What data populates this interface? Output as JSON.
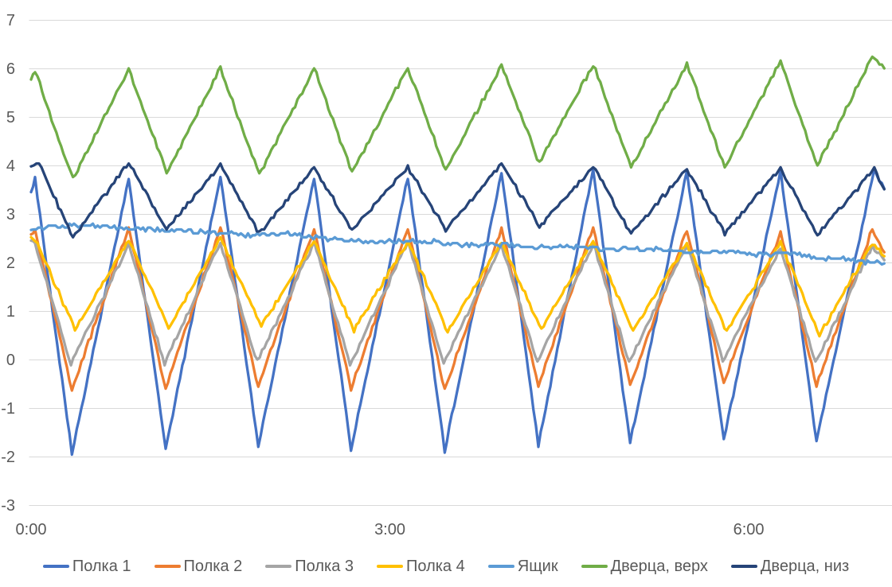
{
  "chart_data": {
    "type": "line",
    "title": "",
    "x_axis": {
      "unit": "time h:mm",
      "visible_range_min": [
        0,
        428
      ],
      "ticks": [
        {
          "t_min": 0,
          "label": "0:00"
        },
        {
          "t_min": 180,
          "label": "3:00"
        },
        {
          "t_min": 360,
          "label": "6:00"
        }
      ]
    },
    "y_axis": {
      "min": -3,
      "max": 7,
      "step": 1,
      "tick_labels": [
        "7",
        "6",
        "5",
        "4",
        "3",
        "2",
        "1",
        "0",
        "-1",
        "-2",
        "-3"
      ]
    },
    "grid": true,
    "legend_position": "bottom",
    "style": {
      "text_color": "#595959",
      "grid_color": "#D9D9D9",
      "background": "#FFFFFF"
    },
    "series": [
      {
        "name": "Полка 1",
        "color": "#4472C4",
        "points": [
          [
            0,
            3.45
          ],
          [
            2,
            3.72
          ],
          [
            20.5,
            -1.93
          ],
          [
            49,
            3.7
          ],
          [
            67.5,
            -1.87
          ],
          [
            95,
            3.78
          ],
          [
            114,
            -1.77
          ],
          [
            142,
            3.75
          ],
          [
            160.5,
            -1.87
          ],
          [
            189,
            3.77
          ],
          [
            207.5,
            -1.88
          ],
          [
            236,
            3.85
          ],
          [
            254.5,
            -1.75
          ],
          [
            282,
            3.92
          ],
          [
            300.5,
            -1.72
          ],
          [
            329,
            3.88
          ],
          [
            347.5,
            -1.66
          ],
          [
            376,
            3.9
          ],
          [
            394,
            -1.69
          ],
          [
            423,
            3.93
          ],
          [
            428,
            3.52
          ]
        ]
      },
      {
        "name": "Полка 2",
        "color": "#ED7D31",
        "points": [
          [
            0,
            2.58
          ],
          [
            2,
            2.65
          ],
          [
            20.5,
            -0.62
          ],
          [
            49,
            2.7
          ],
          [
            67.5,
            -0.6
          ],
          [
            95,
            2.72
          ],
          [
            114,
            -0.55
          ],
          [
            142,
            2.7
          ],
          [
            160.5,
            -0.6
          ],
          [
            189,
            2.71
          ],
          [
            207.5,
            -0.62
          ],
          [
            236,
            2.7
          ],
          [
            254.5,
            -0.55
          ],
          [
            282,
            2.72
          ],
          [
            300.5,
            -0.52
          ],
          [
            329,
            2.66
          ],
          [
            347.5,
            -0.46
          ],
          [
            376,
            2.63
          ],
          [
            394,
            -0.54
          ],
          [
            422,
            2.69
          ],
          [
            428,
            2.21
          ]
        ]
      },
      {
        "name": "Полка 3",
        "color": "#A5A5A5",
        "points": [
          [
            0,
            2.45
          ],
          [
            2,
            2.38
          ],
          [
            20,
            -0.1
          ],
          [
            49,
            2.36
          ],
          [
            67,
            -0.08
          ],
          [
            95,
            2.42
          ],
          [
            113.5,
            -0.05
          ],
          [
            142,
            2.4
          ],
          [
            160,
            -0.1
          ],
          [
            189,
            2.41
          ],
          [
            207,
            -0.08
          ],
          [
            236,
            2.38
          ],
          [
            254,
            -0.05
          ],
          [
            282,
            2.4
          ],
          [
            300,
            -0.04
          ],
          [
            329,
            2.36
          ],
          [
            347,
            -0.02
          ],
          [
            376,
            2.33
          ],
          [
            393.5,
            -0.07
          ],
          [
            422,
            2.35
          ],
          [
            428,
            2.05
          ]
        ]
      },
      {
        "name": "Полка 4",
        "color": "#FFC000",
        "points": [
          [
            0,
            2.52
          ],
          [
            2,
            2.48
          ],
          [
            22,
            0.62
          ],
          [
            49,
            2.46
          ],
          [
            69,
            0.66
          ],
          [
            95,
            2.5
          ],
          [
            115.5,
            0.68
          ],
          [
            142,
            2.44
          ],
          [
            162,
            0.6
          ],
          [
            189,
            2.44
          ],
          [
            209,
            0.57
          ],
          [
            236,
            2.42
          ],
          [
            256,
            0.62
          ],
          [
            282,
            2.45
          ],
          [
            302,
            0.6
          ],
          [
            329,
            2.4
          ],
          [
            349,
            0.58
          ],
          [
            376,
            2.41
          ],
          [
            395.5,
            0.5
          ],
          [
            422,
            2.41
          ],
          [
            428,
            2.13
          ]
        ]
      },
      {
        "name": "Ящик",
        "color": "#5B9BD5",
        "points": [
          [
            0,
            2.67
          ],
          [
            10,
            2.74
          ],
          [
            25,
            2.76
          ],
          [
            55,
            2.7
          ],
          [
            85,
            2.63
          ],
          [
            110,
            2.57
          ],
          [
            130,
            2.6
          ],
          [
            150,
            2.48
          ],
          [
            175,
            2.42
          ],
          [
            195,
            2.45
          ],
          [
            215,
            2.37
          ],
          [
            240,
            2.36
          ],
          [
            255,
            2.3
          ],
          [
            270,
            2.33
          ],
          [
            290,
            2.26
          ],
          [
            310,
            2.3
          ],
          [
            330,
            2.2
          ],
          [
            350,
            2.23
          ],
          [
            365,
            2.15
          ],
          [
            382,
            2.18
          ],
          [
            395,
            2.07
          ],
          [
            405,
            2.1
          ],
          [
            415,
            2.0
          ],
          [
            422,
            2.02
          ],
          [
            428,
            1.98
          ]
        ]
      },
      {
        "name": "Дверца, верх",
        "color": "#70AD47",
        "points": [
          [
            0,
            5.77
          ],
          [
            2,
            5.95
          ],
          [
            21,
            3.72
          ],
          [
            49,
            5.98
          ],
          [
            68,
            3.85
          ],
          [
            95,
            6.0
          ],
          [
            114.5,
            3.82
          ],
          [
            142,
            6.0
          ],
          [
            161,
            3.85
          ],
          [
            189,
            6.02
          ],
          [
            208,
            3.9
          ],
          [
            236,
            6.07
          ],
          [
            255,
            4.05
          ],
          [
            282,
            6.08
          ],
          [
            301,
            3.97
          ],
          [
            329,
            6.08
          ],
          [
            348,
            3.97
          ],
          [
            376,
            6.15
          ],
          [
            394.5,
            4.0
          ],
          [
            422,
            6.23
          ],
          [
            428,
            6.0
          ]
        ]
      },
      {
        "name": "Дверца, низ",
        "color": "#264478",
        "points": [
          [
            0,
            3.98
          ],
          [
            4,
            4.02
          ],
          [
            21,
            2.52
          ],
          [
            49,
            4.05
          ],
          [
            68,
            2.69
          ],
          [
            95,
            4.02
          ],
          [
            114.5,
            2.6
          ],
          [
            142,
            3.95
          ],
          [
            161,
            2.66
          ],
          [
            189,
            3.97
          ],
          [
            208,
            2.66
          ],
          [
            236,
            4.05
          ],
          [
            255,
            2.74
          ],
          [
            282,
            3.97
          ],
          [
            301,
            2.6
          ],
          [
            329,
            3.92
          ],
          [
            348,
            2.6
          ],
          [
            376,
            3.95
          ],
          [
            394.5,
            2.57
          ],
          [
            423,
            3.93
          ],
          [
            428,
            3.51
          ]
        ]
      }
    ]
  }
}
